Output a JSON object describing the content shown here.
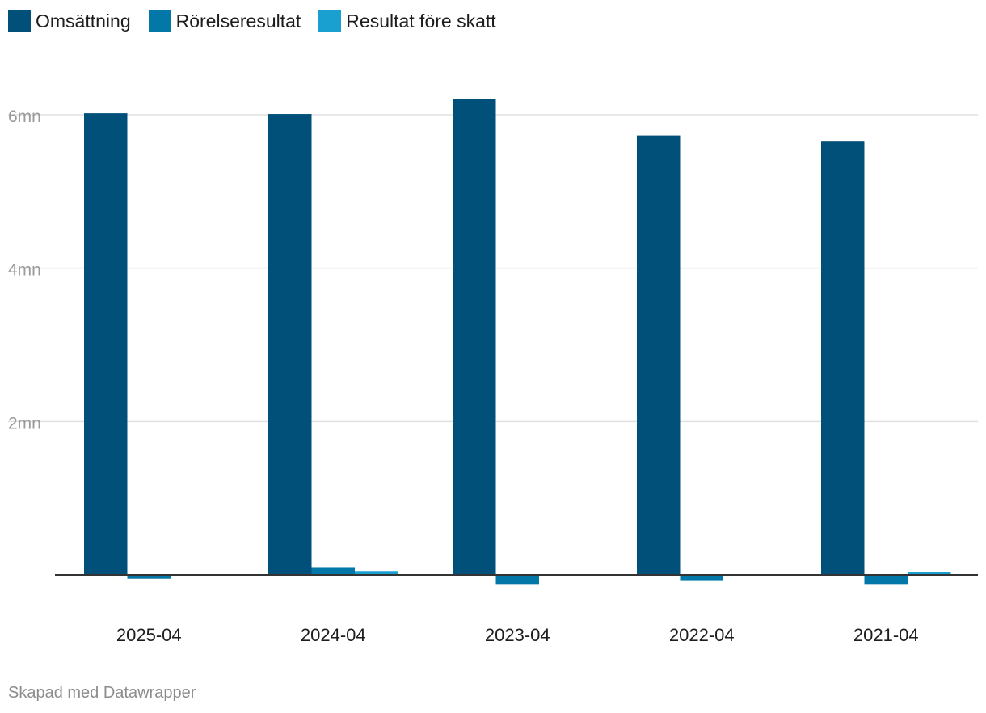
{
  "chart_data": {
    "type": "bar",
    "categories": [
      "2025-04",
      "2024-04",
      "2023-04",
      "2022-04",
      "2021-04"
    ],
    "series": [
      {
        "name": "Omsättning",
        "color": "#00507a",
        "values": [
          6020000,
          6010000,
          6210000,
          5730000,
          5650000
        ]
      },
      {
        "name": "Rörelseresultat",
        "color": "#0378a8",
        "values": [
          -50000,
          90000,
          -130000,
          -80000,
          -130000
        ]
      },
      {
        "name": "Resultat före skatt",
        "color": "#1aa0d0",
        "values": [
          0,
          50000,
          0,
          0,
          40000
        ]
      }
    ],
    "yticks": [
      {
        "value": 2000000,
        "label": "2mn"
      },
      {
        "value": 4000000,
        "label": "4mn"
      },
      {
        "value": 6000000,
        "label": "6mn"
      }
    ],
    "ylim": [
      -300000,
      6900000
    ],
    "grid": true,
    "legend_position": "top-left"
  },
  "footer": "Skapad med Datawrapper"
}
